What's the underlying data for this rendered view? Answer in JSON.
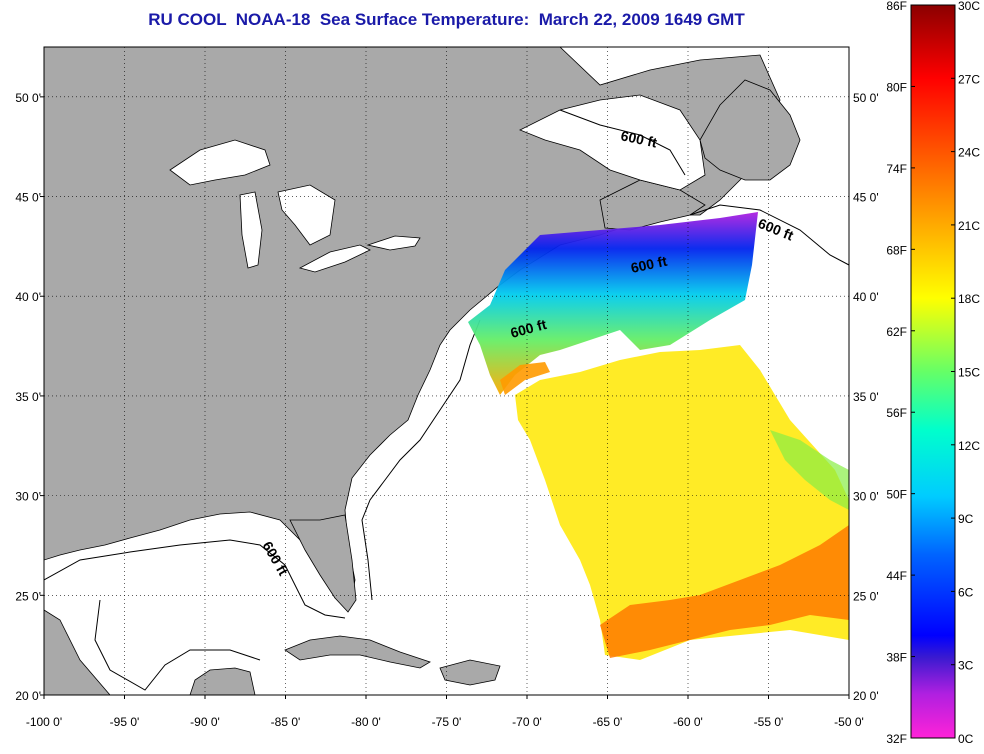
{
  "title": "RU COOL  NOAA-18  Sea Surface Temperature:  March 22, 2009 1649 GMT",
  "map": {
    "lon_range": [
      -100,
      -50
    ],
    "lat_range": [
      20,
      52.5
    ],
    "lat_ticks": [
      {
        "value": 50,
        "label": "50 0'"
      },
      {
        "value": 45,
        "label": "45 0'"
      },
      {
        "value": 40,
        "label": "40 0'"
      },
      {
        "value": 35,
        "label": "35 0'"
      },
      {
        "value": 30,
        "label": "30 0'"
      },
      {
        "value": 25,
        "label": "25 0'"
      },
      {
        "value": 20,
        "label": "20 0'"
      }
    ],
    "lon_ticks": [
      {
        "value": -100,
        "label": "-100 0'"
      },
      {
        "value": -95,
        "label": "-95 0'"
      },
      {
        "value": -90,
        "label": "-90 0'"
      },
      {
        "value": -85,
        "label": "-85 0'"
      },
      {
        "value": -80,
        "label": "-80 0'"
      },
      {
        "value": -75,
        "label": "-75 0'"
      },
      {
        "value": -70,
        "label": "-70 0'"
      },
      {
        "value": -65,
        "label": "-65 0'"
      },
      {
        "value": -60,
        "label": "-60 0'"
      },
      {
        "value": -55,
        "label": "-55 0'"
      },
      {
        "value": -50,
        "label": "-50 0'"
      }
    ],
    "contour_labels": [
      "600 ft",
      "600 ft",
      "600 ft",
      "600 ft",
      "600 ft"
    ],
    "colors": {
      "land": "#a9a9a9",
      "ocean": "#ffffff",
      "frame": "#000000"
    }
  },
  "colorbar": {
    "fahrenheit": [
      "86F",
      "80F",
      "74F",
      "68F",
      "62F",
      "56F",
      "50F",
      "44F",
      "38F",
      "32F"
    ],
    "celsius": [
      "30C",
      "27C",
      "24C",
      "21C",
      "18C",
      "15C",
      "12C",
      "9C",
      "6C",
      "3C",
      "0C"
    ]
  }
}
